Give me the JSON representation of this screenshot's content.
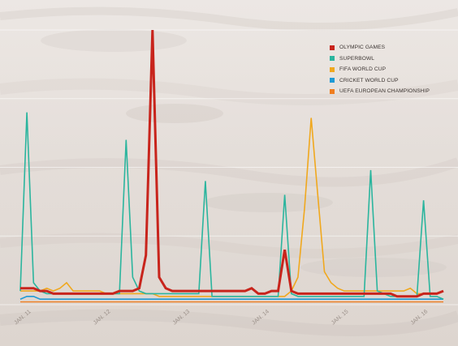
{
  "chart_data": {
    "type": "line",
    "title": "",
    "xlabel": "",
    "ylabel": "",
    "ylim": [
      0,
      100
    ],
    "grid": true,
    "legend_position": "top-right",
    "x_ticks": [
      {
        "label": "JAN. 11",
        "x": 0
      },
      {
        "label": "JAN. 12",
        "x": 12
      },
      {
        "label": "JAN. 13",
        "x": 24
      },
      {
        "label": "JAN. 14",
        "x": 36
      },
      {
        "label": "JAN. 15",
        "x": 48
      },
      {
        "label": "JAN. 16",
        "x": 60
      }
    ],
    "x_max": 64,
    "series": [
      {
        "name": "OLYMPIC GAMES",
        "color": "#c8241c",
        "width": 3,
        "values": [
          6,
          6,
          6,
          5,
          5,
          4,
          4,
          4,
          4,
          4,
          4,
          4,
          4,
          4,
          4,
          5,
          5,
          5,
          6,
          18,
          100,
          10,
          6,
          5,
          5,
          5,
          5,
          5,
          5,
          5,
          5,
          5,
          5,
          5,
          5,
          6,
          4,
          4,
          5,
          5,
          20,
          5,
          4,
          4,
          4,
          4,
          4,
          4,
          4,
          4,
          4,
          4,
          4,
          4,
          4,
          4,
          4,
          3,
          3,
          3,
          3,
          4,
          4,
          4,
          5
        ]
      },
      {
        "name": "SUPERBOWL",
        "color": "#2bb59e",
        "width": 1.6,
        "values": [
          5,
          70,
          8,
          5,
          4,
          4,
          4,
          4,
          4,
          4,
          4,
          4,
          4,
          4,
          4,
          4,
          60,
          10,
          5,
          4,
          4,
          4,
          4,
          4,
          4,
          4,
          4,
          4,
          45,
          3,
          3,
          3,
          3,
          3,
          3,
          3,
          3,
          3,
          3,
          3,
          40,
          4,
          3,
          3,
          3,
          3,
          3,
          3,
          3,
          3,
          3,
          3,
          3,
          49,
          5,
          4,
          3,
          3,
          3,
          3,
          3,
          38,
          3,
          3,
          2
        ]
      },
      {
        "name": "FIFA WORLD CUP",
        "color": "#f0a81e",
        "width": 1.6,
        "values": [
          5,
          5,
          5,
          5,
          6,
          5,
          6,
          8,
          5,
          5,
          5,
          5,
          5,
          4,
          4,
          4,
          4,
          4,
          4,
          4,
          4,
          3,
          3,
          3,
          3,
          3,
          3,
          3,
          3,
          3,
          3,
          3,
          3,
          3,
          3,
          3,
          3,
          3,
          3,
          3,
          3,
          5,
          10,
          35,
          68,
          40,
          12,
          8,
          6,
          5,
          5,
          5,
          5,
          5,
          5,
          5,
          5,
          5,
          5,
          6,
          4,
          4,
          4,
          4,
          5
        ]
      },
      {
        "name": "CRICKET WORLD CUP",
        "color": "#1f9ad6",
        "width": 1.6,
        "values": [
          2,
          3,
          3,
          2,
          2,
          2,
          2,
          2,
          2,
          2,
          2,
          2,
          2,
          2,
          2,
          2,
          2,
          2,
          2,
          2,
          2,
          2,
          2,
          2,
          2,
          2,
          2,
          2,
          2,
          2,
          2,
          2,
          2,
          2,
          2,
          2,
          2,
          2,
          2,
          2,
          2,
          2,
          2,
          2,
          2,
          2,
          2,
          2,
          2,
          2,
          2,
          2,
          2,
          2,
          2,
          2,
          2,
          2,
          2,
          2,
          2,
          2,
          2,
          2,
          2
        ]
      },
      {
        "name": "UEFA EUROPEAN CHAMPIONSHIP",
        "color": "#ef7d1f",
        "width": 1.4,
        "values": [
          1,
          1,
          1,
          1,
          1,
          1,
          1,
          1,
          1,
          1,
          1,
          1,
          1,
          1,
          1,
          1,
          1,
          1,
          1,
          1,
          1,
          1,
          1,
          1,
          1,
          1,
          1,
          1,
          1,
          1,
          1,
          1,
          1,
          1,
          1,
          1,
          1,
          1,
          1,
          1,
          1,
          1,
          1,
          1,
          1,
          1,
          1,
          1,
          1,
          1,
          1,
          1,
          1,
          1,
          1,
          1,
          1,
          1,
          1,
          1,
          1,
          1,
          1,
          1,
          1
        ]
      }
    ]
  }
}
